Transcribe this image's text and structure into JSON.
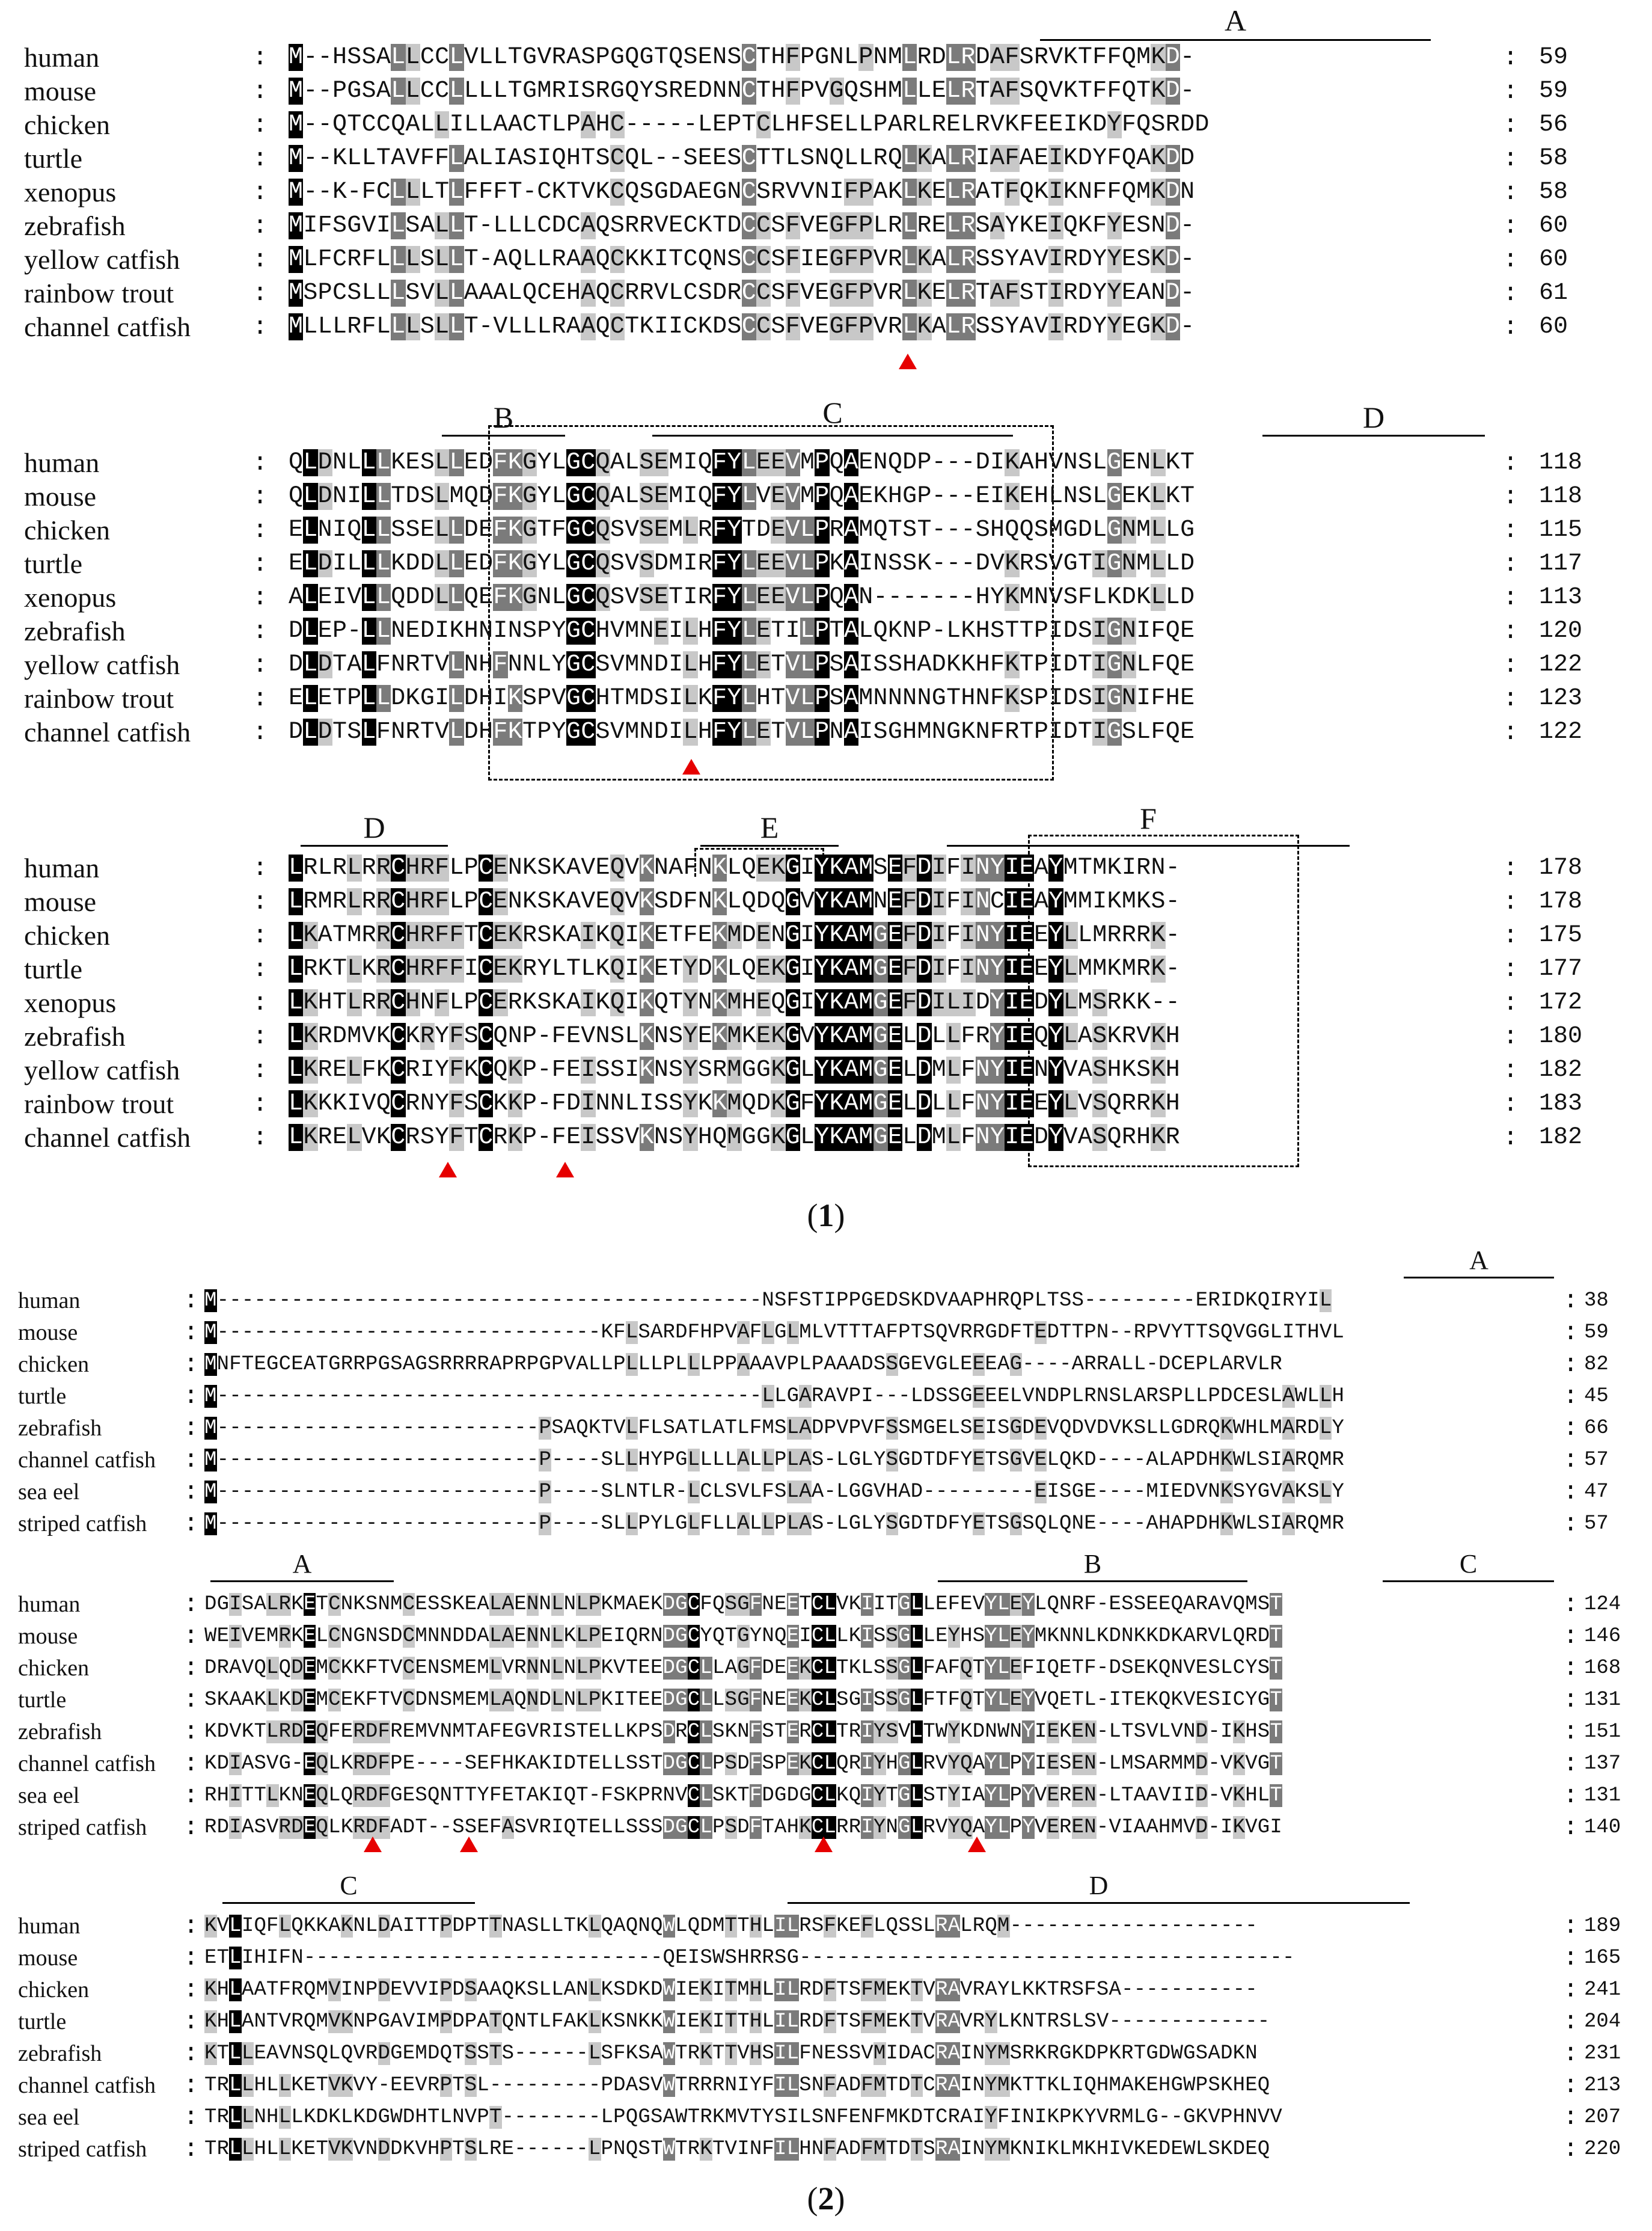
{
  "figure": {
    "panel1": {
      "caption": "(1)",
      "caption_number": "1",
      "blocks": [
        {
          "rows": [
            {
              "species": "human",
              "seq": "M--HSSALLCCLVLLTGVRASPGQGTQSENSCTHFPGNLPNMLRDLRDAFSRVKTFFQMKD-",
              "num": "59"
            },
            {
              "species": "mouse",
              "seq": "M--PGSALLCCLLLLTGMRISRGQYSREDNNCTHFPVGQSHMLLELRTAFSQVKTFFQTKD-",
              "num": "59"
            },
            {
              "species": "chicken",
              "seq": "M--QTCCQALLILLAACTLPAHC-----LEPTCLHFSELLPARLRELRVKFEEIKDYFQSRDD",
              "num": "56"
            },
            {
              "species": "turtle",
              "seq": "M--KLLTAVFFLALIASIQHTSCQL--SEESCTTLSNQLLRQLKALRIAFAEIKDYFQAKDD",
              "num": "58"
            },
            {
              "species": "xenopus",
              "seq": "M--K-FCLLLTLFFFT-CKTVKCQSGDAEGNCSRVVNIFPAKLKELRATFQKIKNFFQMKDN",
              "num": "58"
            },
            {
              "species": "zebrafish",
              "seq": "MIFSGVILSALLT-LLLCDCAQSRRVECKTDCCSFVEGFPLRLRELRSAYKEIQKFYESND-",
              "num": "60"
            },
            {
              "species": "yellow catfish",
              "seq": "MLFCRFLLLSLLT-AQLLRAAQCKKITCQNSCCSFIEGFPVRLKALRSSYAVIRDYYESKD-",
              "num": "60"
            },
            {
              "species": "rainbow trout",
              "seq": "MSPCSLLLSVLLAAALQCEHAQCRRVLCSDRCCSFVEGFPVRLKELRTAFSTIRDYYEAND-",
              "num": "61"
            },
            {
              "species": "channel catfish",
              "seq": "MLLLRFLLLSLLT-VLLLRAAQCTKIICKDSCCSFVEGFPVRLKALRSSYAVIRDYYEGKD-",
              "num": "60"
            }
          ]
        },
        {
          "rows": [
            {
              "species": "human",
              "seq": "QLDNLLLKESLLEDFKGYLGCQALSEMIQFYLEEVMPQAENQDP---DIKAHVNSLGENLKT",
              "num": "118"
            },
            {
              "species": "mouse",
              "seq": "QLDNILLTDSLMQDFKGYLGCQALSEMIQFYLVEVMPQAEKHGP---EIKEHLNSLGEKLKT",
              "num": "118"
            },
            {
              "species": "chicken",
              "seq": "ELNIQLLSSELLDEFKGTFGCQSVSEMLRFYTDEVLPRAMQTST---SHQQSMGDLGNMLLG",
              "num": "115"
            },
            {
              "species": "turtle",
              "seq": "ELDILLLKDDLLEDFKGYLGCQSVSDMIRFYLEEVLPKAINSSK---DVKRSVGTIGNMLLD",
              "num": "117"
            },
            {
              "species": "xenopus",
              "seq": "ALEIVLLQDDLLQEFKGNLGCQSVSETIRFYLEEVLPQAN-------HYKMNVSFLKDKLLD",
              "num": "113"
            },
            {
              "species": "zebrafish",
              "seq": "DLEP-LLNEDIKHNINSPYGCHVMNEILHFYLETILPTALQKNP-LKHSTTPIDSIGNIFQE",
              "num": "120"
            },
            {
              "species": "yellow catfish",
              "seq": "DLDTALFNRTVLNHFNNLYGCSVMNDILHFYLETVLPSAISSHADKKHFKTPIDTIGNLFQE",
              "num": "122"
            },
            {
              "species": "rainbow trout",
              "seq": "ELETPLLDKGILDHIKSPVGCHTMDSILKFYLHTVLPSAMNNNNGTHNFKSPIDSIGNIFHE",
              "num": "123"
            },
            {
              "species": "channel catfish",
              "seq": "DLDTSLFNRTVLDHFKTPYGCSVMNDILHFYLETVLPNAISGHMNGKNFRTPIDTIGSLFQE",
              "num": "122"
            }
          ]
        },
        {
          "rows": [
            {
              "species": "human",
              "seq": "LRLRLRRCHRFLPCENKSKAVEQVKNAFNKLQEKGIYKAMSEFDIFINYIEAYMTMKIRN-",
              "num": "178"
            },
            {
              "species": "mouse",
              "seq": "LRMRLRRCHRFLPCENKSKAVEQVKSDFNKLQDQGVYKAMNEFDIFINCIEAYMMIKMKS-",
              "num": "178"
            },
            {
              "species": "chicken",
              "seq": "LKATMRRCHRFFTCEKRSKAIKQIKETFEKMDENGIYKAMGEFDIFINYIEEYLLMRRRK-",
              "num": "175"
            },
            {
              "species": "turtle",
              "seq": "LRKTLKRCHRFFICEKRYLTLKQIKETYDKLQEKGIYKAMGEFDIFINYIEEYLMMKMRK-",
              "num": "177"
            },
            {
              "species": "xenopus",
              "seq": "LKHTLRRCHNFLPCERKSKAIKQIKQTYNKMHEQGIYKAMGEFDILIDYIEDYLMSRKK--",
              "num": "172"
            },
            {
              "species": "zebrafish",
              "seq": "LKRDMVKCKRYFSCQNP-FEVNSLKNSYEKMKEKGVYKAMGELDLLFRYIEQYLASKRVKH",
              "num": "180"
            },
            {
              "species": "yellow catfish",
              "seq": "LKRELFKCRIYFKCQKP-FEISSIKNSYSRMGGKGLYKAMGELDMLFNYIENYVASHKSKH",
              "num": "182"
            },
            {
              "species": "rainbow trout",
              "seq": "LKKKIVQCRNYFSCKKP-FDINNLISSYKKMQDKGFYKAMGELDLLFNYIEEYLVSQRRKH",
              "num": "183"
            },
            {
              "species": "channel catfish",
              "seq": "LKRELVKCRSYFTCRKP-FEISSVKNSYHQMGGKGLYKAMGELDMLFNYIEDYVASQRHKR",
              "num": "182"
            }
          ]
        }
      ],
      "regions": [
        "A",
        "B",
        "C",
        "D",
        "D",
        "E",
        "F"
      ]
    },
    "panel2": {
      "caption": "(2)",
      "caption_number": "2",
      "blocks": [
        {
          "rows": [
            {
              "species": "human",
              "seq": "M--------------------------------------------NSFSTIPPGEDSKDVAAPHRQPLTSS---------ERIDKQIRYIL",
              "num": "38"
            },
            {
              "species": "mouse",
              "seq": "M-------------------------------KFLSARDFHPVAFLGLMLVTTTAFPTSQVRRGDFTEDTTPN--RPVYTTSQVGGLITHVL",
              "num": "59"
            },
            {
              "species": "chicken",
              "seq": "MNFTEGCEATGRRPGSAGSRRRRAPRPGPVALLPLLLPLLLPPAAAVPLPAAADSSGEVGLEEEAG----ARRALL-DCEPLARVLR",
              "num": "82"
            },
            {
              "species": "turtle",
              "seq": "M--------------------------------------------LLGARAVPI---LDSSGEEELVNDPLRNSLARSPLLPDCESLAWLLH",
              "num": "45"
            },
            {
              "species": "zebrafish",
              "seq": "M--------------------------PSAQKTVLFLSATLATLFMSLADPVPVFSSMGELSEISGDEVQDVDVKSLLGDRQKWHLMARDLY",
              "num": "66"
            },
            {
              "species": "channel catfish",
              "seq": "M--------------------------P----SLLHYPGLLLLALLPLAS-LGLYSGDTDFYETSGVELQKD----ALAPDHKWLSIARQMR",
              "num": "57"
            },
            {
              "species": "sea eel",
              "seq": "M--------------------------P----SLNTLR-LCLSVLFSLAA-LGGVHAD---------EISGE----MIEDVNKSYGVAKSLY",
              "num": "47"
            },
            {
              "species": "striped catfish",
              "seq": "M--------------------------P----SLLPYLGLFLLALLPLAS-LGLYSGDTDFYETSGSQLQNE----AHAPDHKWLSIARQMR",
              "num": "57"
            }
          ]
        },
        {
          "rows": [
            {
              "species": "human",
              "seq": "DGISALRKETCNKSNMCESSKEALAENNLNLPKMAEKDGCFQSGFNEETCLVKIITGLLEFEVYLEYLQNRF-ESSEEQARAVQMST",
              "num": "124"
            },
            {
              "species": "mouse",
              "seq": "WEIVEMRKELCNGNSDCMNNDDALAENNLKLPEIQRNDGCYQTGYNQEICLLKISSGLLEYHSYLEYMKNNLKDNKKDKARVLQRDT",
              "num": "146"
            },
            {
              "species": "chicken",
              "seq": "DRAVQLQDEMCKKFTVCENSMEMLVRNNLNLPKVTEEDGCLLAGFDEEKCLTKLSSGLFAFQTYLEFIQETF-DSEKQNVESLCYST",
              "num": "168"
            },
            {
              "species": "turtle",
              "seq": "SKAAKLKDEMCEKFTVCDNSMEMLAQNDLNLPKITEEDGCLLSGFNEEKCLSGISSGLFTFQTYLEYVQETL-ITEKQKVESICYGT",
              "num": "131"
            },
            {
              "species": "zebrafish",
              "seq": "KDVKTLRDEQFERDFREMVNMTAFEGVRISTELLKPSDRCLSKNFSTERCLTRIYSVLTWYKDNWNYIEKEN-LTSVLVND-IKHST",
              "num": "151"
            },
            {
              "species": "channel catfish",
              "seq": "KDIASVG-EQLKRDFPE----SEFHKAKIDTELLSSTDGCLPSDFSPEKCLQRIYHGLRVYQAYLPYIESEN-LMSARMMD-VKVGT",
              "num": "137"
            },
            {
              "species": "sea eel",
              "seq": "RHITTLKNEQLQRDFGESQNTTYFETAKIQT-FSKPRNVCLSKTFDGDGCLKQIYTGLSTYIAYLPYVEREN-LTAAVIID-VKHLT",
              "num": "131"
            },
            {
              "species": "striped catfish",
              "seq": "RDIASVRDEQLKRDFADT--SSEFASVRIQTELLSSSDGCLPSDFTAHKCLRRIYNGLRVYQAYLPYVEREN-VIAAHMVD-IKVGI",
              "num": "140"
            }
          ]
        },
        {
          "rows": [
            {
              "species": "human",
              "seq": "KVLIQFLQKKAKNLDAITTPDPTTNASLLTKLQAQNQWLQDMTTHLILRSFKEFLQSSLRALRQM--------------------",
              "num": "189"
            },
            {
              "species": "mouse",
              "seq": "ETLIHIFN-----------------------------QEISWSHRRSG----------------------------------------",
              "num": "165"
            },
            {
              "species": "chicken",
              "seq": "KHLAATFRQMVINPDEVVIPDSAAQKSLLANLKSDKDWIEKITMHLILRDFTSFMEKTVRAVRAYLKKTRSFSA-----------",
              "num": "241"
            },
            {
              "species": "turtle",
              "seq": "KHLANTVRQMVKNPGAVIMPDPATQNTLFAKLKSNKKWIEKITTHLILRDFTSFMEKTVRAVRYLKNTRSLSV-------------",
              "num": "204"
            },
            {
              "species": "zebrafish",
              "seq": "KTLLEAVNSQLQVRDGEMDQTSSTS------LSFKSAWTRKTTVHSILFNESSVMIDACRAINYMSRKRGKDPKRTGDWGSADKN",
              "num": "231"
            },
            {
              "species": "channel catfish",
              "seq": "TRLLHLLKETVKVY-EEVRPTSL---------PDASVWTRRRNIYFILSNFADFMTDTCRAINYMKTTKLIQHMAKEHGWPSKHEQ",
              "num": "213"
            },
            {
              "species": "sea eel",
              "seq": "TRLLNHLLKDKLKDGWDHTLNVPT--------LPQGSAWTRKMVTYSILSNFENFMKDTCRAIYFINIKPKYVRMLG--GKVPHNVV",
              "num": "207"
            },
            {
              "species": "striped catfish",
              "seq": "TRLLHLLKETVKVNDDKVHPTSLRE------LPNQSTWTRKTVINFILHNFADFMTDTSRAINYMKNIKLMKHIVKEDEWLSKDEQ",
              "num": "220"
            }
          ]
        }
      ],
      "regions": [
        "A",
        "A",
        "B",
        "C",
        "C",
        "D"
      ]
    },
    "colors": {
      "black": "#000000",
      "dark_grey": "#7b7b7b",
      "light_grey": "#c8c8c8",
      "marker_red": "#e60000"
    }
  }
}
